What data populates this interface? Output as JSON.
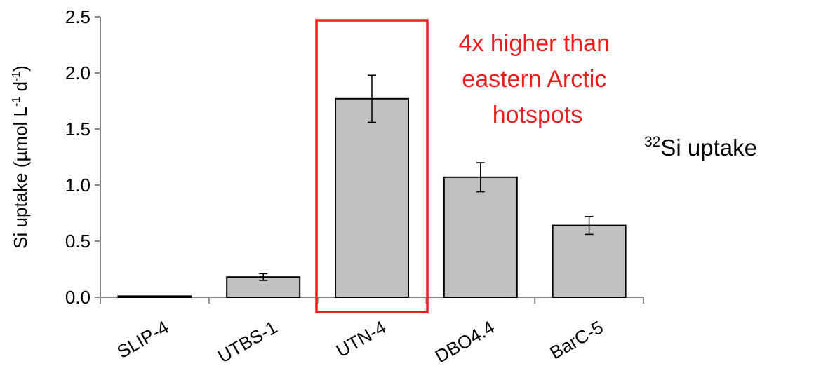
{
  "chart_data": {
    "type": "bar",
    "categories": [
      "SLIP-4",
      "UTBS-1",
      "UTN-4",
      "DBO4.4",
      "BarC-5"
    ],
    "values": [
      0.01,
      0.18,
      1.77,
      1.07,
      0.64
    ],
    "errors": [
      0.0,
      0.03,
      0.21,
      0.13,
      0.08
    ],
    "yticks": [
      "0.0",
      "0.5",
      "1.0",
      "1.5",
      "2.0",
      "2.5"
    ],
    "ylim": [
      0,
      2.5
    ],
    "ylabel": {
      "main": "Si uptake (µmol L",
      "sup1": "-1",
      "mid": " d",
      "sup2": "-1",
      "end": ")"
    },
    "annotation": {
      "lines": [
        "4x higher than",
        "eastern Arctic",
        "hotspots"
      ],
      "color": "#ee1c1c",
      "highlight_category": "UTN-4"
    },
    "side_label": {
      "sup": "32",
      "text": "Si uptake"
    },
    "bar_color": "#c0c0c0",
    "bar_stroke": "#000000",
    "grid": false
  }
}
